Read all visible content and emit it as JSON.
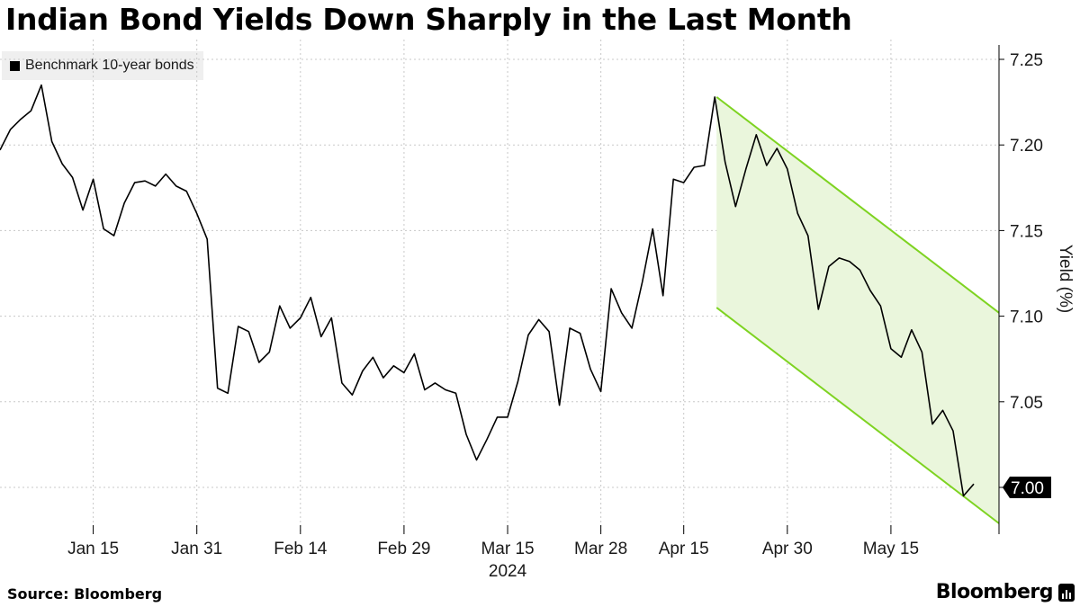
{
  "title": "Indian Bond Yields Down Sharply in the Last Month",
  "legend": {
    "label": "Benchmark 10-year bonds"
  },
  "source": "Source: Bloomberg",
  "brand": "Bloomberg",
  "colors": {
    "line": "#000000",
    "channel_line": "#7ed321",
    "channel_fill": "#eaf6dc",
    "grid": "#c8c8c8"
  },
  "chart_data": {
    "type": "line",
    "title": "Indian Bond Yields Down Sharply in the Last Month",
    "xlabel": "2024",
    "ylabel": "Yield (%)",
    "ylim": [
      6.98,
      7.27
    ],
    "y_ticks": [
      "7.25",
      "7.20",
      "7.15",
      "7.10",
      "7.05",
      "7.00"
    ],
    "x_ticks": [
      {
        "label": "Jan 15",
        "index": 9
      },
      {
        "label": "Jan 31",
        "index": 19
      },
      {
        "label": "Feb 14",
        "index": 29
      },
      {
        "label": "Feb 29",
        "index": 39
      },
      {
        "label": "Mar 15",
        "index": 49
      },
      {
        "label": "Mar 28",
        "index": 58
      },
      {
        "label": "Apr 15",
        "index": 66
      },
      {
        "label": "Apr 30",
        "index": 76
      },
      {
        "label": "May 15",
        "index": 86
      }
    ],
    "year_label": "2024",
    "last_value_label": "7.00",
    "series": [
      {
        "name": "Benchmark 10-year bonds",
        "values": [
          7.197,
          7.209,
          7.215,
          7.22,
          7.235,
          7.202,
          7.189,
          7.181,
          7.162,
          7.18,
          7.151,
          7.147,
          7.166,
          7.178,
          7.179,
          7.176,
          7.183,
          7.176,
          7.173,
          7.16,
          7.145,
          7.058,
          7.055,
          7.094,
          7.091,
          7.073,
          7.079,
          7.106,
          7.093,
          7.099,
          7.111,
          7.088,
          7.099,
          7.061,
          7.054,
          7.068,
          7.076,
          7.064,
          7.071,
          7.067,
          7.078,
          7.057,
          7.061,
          7.057,
          7.055,
          7.031,
          7.016,
          7.028,
          7.041,
          7.041,
          7.062,
          7.089,
          7.098,
          7.091,
          7.048,
          7.093,
          7.09,
          7.069,
          7.056,
          7.116,
          7.102,
          7.093,
          7.12,
          7.151,
          7.112,
          7.18,
          7.178,
          7.187,
          7.188,
          7.228,
          7.19,
          7.164,
          7.186,
          7.206,
          7.188,
          7.198,
          7.186,
          7.16,
          7.147,
          7.104,
          7.129,
          7.134,
          7.132,
          7.127,
          7.115,
          7.106,
          7.081,
          7.076,
          7.092,
          7.079,
          7.037,
          7.045,
          7.033,
          6.995,
          7.002
        ]
      }
    ],
    "channel": {
      "start_index": 69,
      "end_index": 94,
      "upper": [
        7.228,
        7.102
      ],
      "lower": [
        7.105,
        6.979
      ]
    }
  }
}
